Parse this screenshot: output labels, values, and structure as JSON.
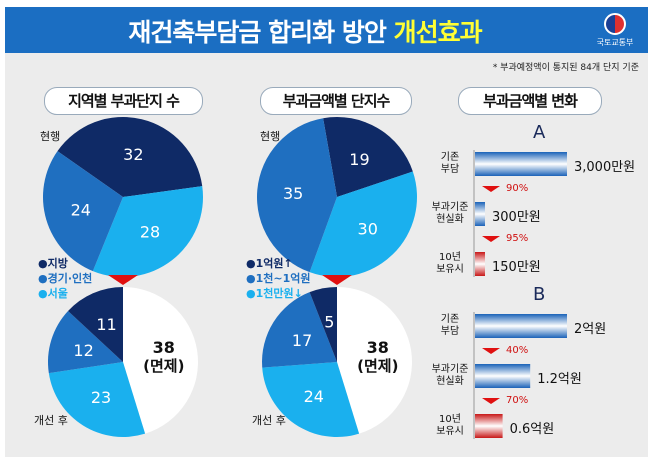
{
  "header": {
    "title_main": "재건축부담금 합리화 방안",
    "title_highlight": "개선효과",
    "logo_text": "국토교통부"
  },
  "note": "* 부과예정액이 통지된 84개 단지 기준",
  "colors": {
    "dark": "#0f2a66",
    "medium": "#1f6fc0",
    "light": "#1ab0ee",
    "white": "#ffffff",
    "arrow": "#e01010"
  },
  "chart_data": [
    {
      "type": "pie",
      "title": "지역별 부과단지 수",
      "subtitle": "현행",
      "categories": [
        "지방",
        "서울",
        "경기·인천"
      ],
      "values": [
        32,
        28,
        24
      ]
    },
    {
      "type": "pie",
      "subtitle": "개선 후",
      "categories": [
        "면제",
        "서울",
        "경기·인천",
        "지방"
      ],
      "values": [
        38,
        23,
        12,
        11
      ],
      "labels": [
        "38\n(면제)",
        "23",
        "12",
        "11"
      ]
    },
    {
      "type": "pie",
      "title": "부과금액별 단지수",
      "subtitle": "현행",
      "categories": [
        "1억원↑",
        "1천만원↓",
        "1천~1억원"
      ],
      "values": [
        19,
        30,
        35
      ]
    },
    {
      "type": "pie",
      "subtitle": "개선 후",
      "categories": [
        "면제",
        "1천만원↓",
        "1천~1억원",
        "1억원↑"
      ],
      "values": [
        38,
        24,
        17,
        5
      ]
    },
    {
      "type": "bar",
      "title": "부과금액별 변화",
      "section": "A",
      "categories": [
        "기존 부담",
        "부과기준 현실화",
        "10년 보유시"
      ],
      "values": [
        3000,
        300,
        150
      ],
      "unit": "만원",
      "value_labels": [
        "3,000만원",
        "300만원",
        "150만원"
      ],
      "reductions": [
        "90%",
        "95%"
      ]
    },
    {
      "type": "bar",
      "section": "B",
      "categories": [
        "기존 부담",
        "부과기준 현실화",
        "10년 보유시"
      ],
      "values": [
        2,
        1.2,
        0.6
      ],
      "unit": "억원",
      "value_labels": [
        "2억원",
        "1.2억원",
        "0.6억원"
      ],
      "reductions": [
        "40%",
        "70%"
      ]
    }
  ],
  "legend1": [
    "●지방",
    "●경기·인천",
    "●서울"
  ],
  "legend2": [
    "●1억원↑",
    "●1천~1억원",
    "●1천만원↓"
  ],
  "pies": {
    "current": "현행",
    "after": "개선 후",
    "exempt_value": "38",
    "exempt_label": "(면제)"
  },
  "bar_labels": [
    [
      "기존",
      "부담"
    ],
    [
      "부과기준",
      "현실화"
    ],
    [
      "10년",
      "보유시"
    ]
  ]
}
